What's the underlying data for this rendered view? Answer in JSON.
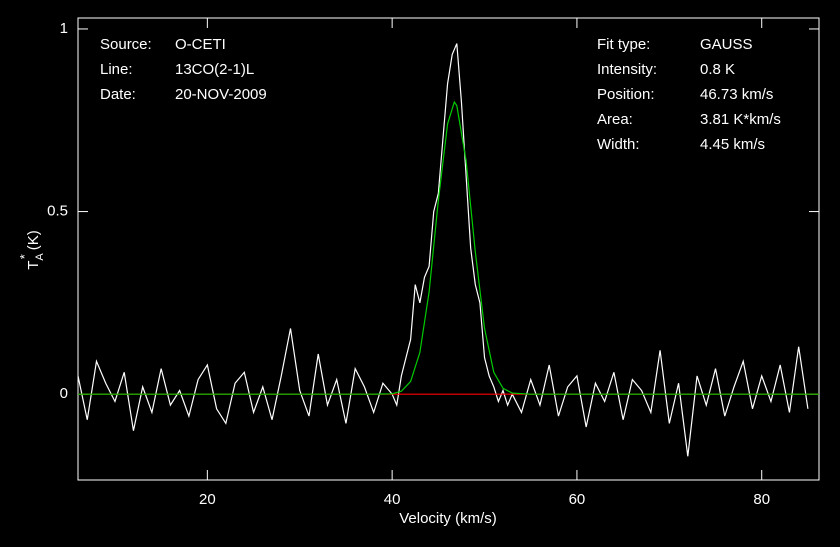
{
  "chart_data": {
    "type": "line",
    "xlabel": "Velocity (km/s)",
    "ylabel": {
      "main": "T",
      "sub": "A",
      "sup": "*",
      "unit": "(K)"
    },
    "xlim": [
      6,
      86.2
    ],
    "ylim": [
      -0.235,
      1.03
    ],
    "xticks": [
      20,
      40,
      60,
      80
    ],
    "yticks": [
      0,
      0.5,
      1
    ],
    "info_left": [
      [
        "Source:",
        "O-CETI"
      ],
      [
        "Line:",
        "13CO(2-1)L"
      ],
      [
        "Date:",
        "20-NOV-2009"
      ]
    ],
    "info_right": [
      [
        "Fit type:",
        "GAUSS"
      ],
      [
        "Intensity:",
        "0.8 K"
      ],
      [
        "Position:",
        "46.73 km/s"
      ],
      [
        "Area:",
        "3.81 K*km/s"
      ],
      [
        "Width:",
        "4.45 km/s"
      ]
    ],
    "series": [
      {
        "color": "#ffffff",
        "x": [
          6,
          7,
          8,
          9,
          10,
          11,
          12,
          13,
          14,
          15,
          16,
          17,
          18,
          19,
          20,
          21,
          22,
          23,
          24,
          25,
          26,
          27,
          28,
          29,
          30,
          31,
          32,
          33,
          34,
          35,
          36,
          37,
          38,
          39,
          40,
          40.5,
          41,
          41.5,
          42,
          42.5,
          43,
          43.5,
          44,
          44.5,
          45,
          45.5,
          46,
          46.5,
          47,
          47.5,
          48,
          48.5,
          49,
          49.5,
          50,
          50.5,
          51,
          51.5,
          52,
          52.5,
          53,
          54,
          55,
          56,
          57,
          58,
          59,
          60,
          61,
          62,
          63,
          64,
          65,
          66,
          67,
          68,
          69,
          70,
          71,
          72,
          73,
          74,
          75,
          76,
          77,
          78,
          79,
          80,
          81,
          82,
          83,
          84,
          85
        ],
        "values": [
          0.05,
          -0.07,
          0.09,
          0.03,
          -0.02,
          0.06,
          -0.1,
          0.02,
          -0.05,
          0.07,
          -0.03,
          0.01,
          -0.06,
          0.04,
          0.08,
          -0.04,
          -0.08,
          0.03,
          0.06,
          -0.05,
          0.02,
          -0.07,
          0.05,
          0.18,
          0.01,
          -0.06,
          0.11,
          -0.03,
          0.04,
          -0.08,
          0.07,
          0.02,
          -0.05,
          0.03,
          0.0,
          -0.03,
          0.05,
          0.1,
          0.15,
          0.3,
          0.25,
          0.32,
          0.35,
          0.5,
          0.55,
          0.7,
          0.85,
          0.93,
          0.96,
          0.8,
          0.6,
          0.4,
          0.3,
          0.25,
          0.1,
          0.05,
          0.02,
          -0.02,
          0.01,
          -0.03,
          0.0,
          -0.05,
          0.04,
          -0.03,
          0.08,
          -0.06,
          0.02,
          0.05,
          -0.09,
          0.03,
          -0.02,
          0.06,
          -0.07,
          0.04,
          0.01,
          -0.05,
          0.12,
          -0.08,
          0.03,
          -0.17,
          0.05,
          -0.03,
          0.07,
          -0.06,
          0.02,
          0.09,
          -0.04,
          0.05,
          -0.02,
          0.08,
          -0.05,
          0.13,
          -0.04
        ]
      },
      {
        "color": "#ff0000",
        "x": [
          6,
          86.2
        ],
        "values": [
          0,
          0
        ]
      },
      {
        "color": "#00cc00",
        "x": [
          6,
          38,
          40,
          41,
          42,
          43,
          44,
          45,
          46,
          46.73,
          47,
          48,
          49,
          50,
          51,
          52,
          53,
          55,
          86.2
        ],
        "values": [
          0,
          0,
          0.001,
          0.008,
          0.035,
          0.114,
          0.28,
          0.53,
          0.74,
          0.8,
          0.79,
          0.64,
          0.39,
          0.18,
          0.06,
          0.016,
          0.003,
          0,
          0
        ]
      }
    ]
  }
}
